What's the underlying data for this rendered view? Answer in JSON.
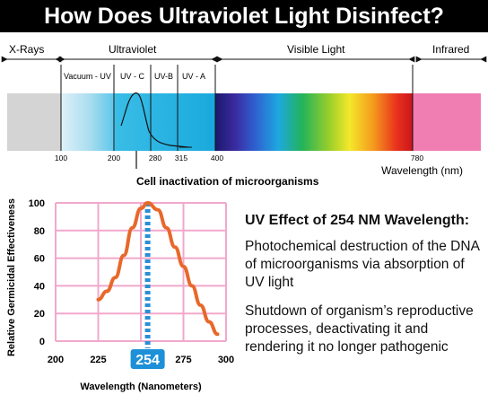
{
  "title": "How Does Ultraviolet Light Disinfect?",
  "spectrum": {
    "bands": {
      "xrays": "X-Rays",
      "ultraviolet": "Ultraviolet",
      "visible": "Visible Light",
      "infrared": "Infrared"
    },
    "sub_bands": {
      "vacuum_uv": "Vacuum - UV",
      "uvc": "UV - C",
      "uvb": "UV-B",
      "uva": "UV - A"
    },
    "ticks": [
      "100",
      "200",
      "280",
      "315",
      "400",
      "780"
    ],
    "axis_label": "Wavelength (nm)",
    "annotation": "Cell inactivation of microorganisms",
    "colors": {
      "xray_gray": "#d4d4d4",
      "uv_light": "#d6edf7",
      "uv_cyan": "#29b7e4",
      "infrared_pink": "#f17eb3"
    }
  },
  "chart_data": {
    "type": "line",
    "ylabel": "Relative Germicidal Effectiveness",
    "xlabel": "Wavelength (Nanometers)",
    "xlim": [
      200,
      300
    ],
    "ylim": [
      0,
      100
    ],
    "xticks": [
      "200",
      "225",
      "250",
      "275",
      "300"
    ],
    "yticks": [
      "0",
      "20",
      "40",
      "60",
      "80",
      "100"
    ],
    "x": [
      225,
      230,
      235,
      240,
      245,
      250,
      254,
      260,
      265,
      270,
      275,
      280,
      285,
      290,
      295
    ],
    "values": [
      30,
      36,
      46,
      62,
      82,
      96,
      100,
      95,
      82,
      68,
      54,
      40,
      26,
      14,
      5
    ],
    "peak_label": "254",
    "peak_x": 254,
    "curve_color": "#e8682a",
    "peak_line_color": "#2a8fd6",
    "grid_color": "#f2a8cc"
  },
  "info": {
    "heading": "UV Effect of 254 NM Wavelength:",
    "para1": "Photochemical destruction of the DNA of microorganisms via absorption of UV light",
    "para2": "Shutdown of organism’s reproductive processes, deactivating it and rendering it no longer pathogenic"
  }
}
